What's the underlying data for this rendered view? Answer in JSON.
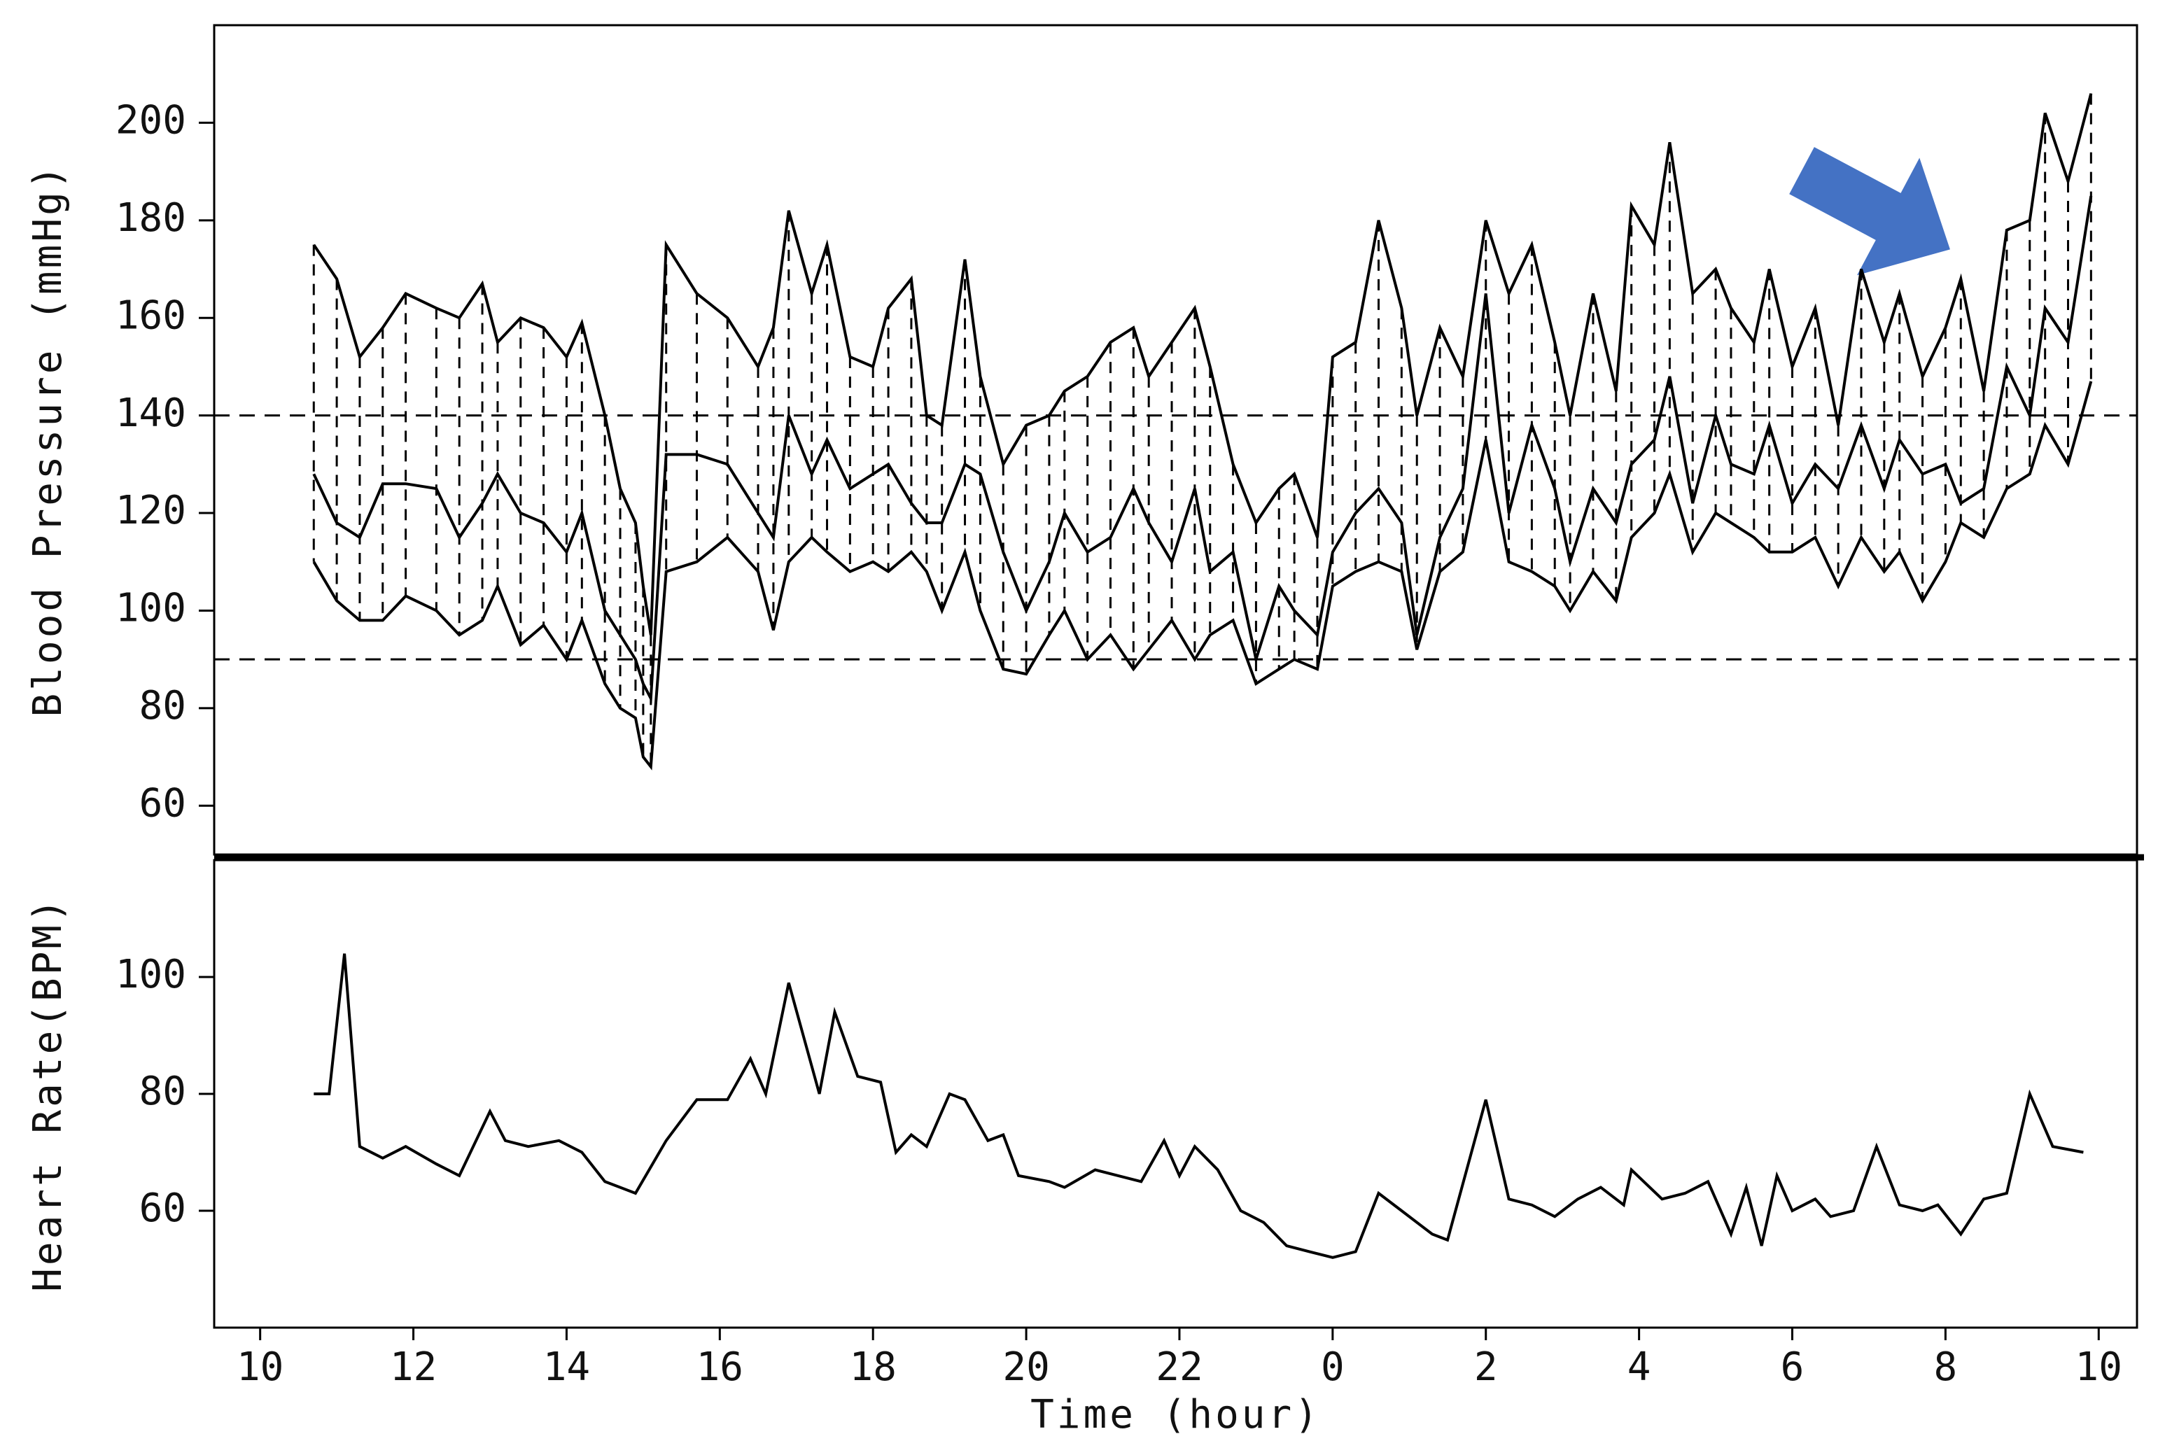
{
  "chart_data": [
    {
      "type": "line",
      "ylabel": "Blood Pressure (mmHg)",
      "x": [
        10.7,
        11.0,
        11.3,
        11.6,
        11.9,
        12.3,
        12.6,
        12.9,
        13.1,
        13.4,
        13.7,
        14.0,
        14.2,
        14.5,
        14.7,
        14.9,
        15.0,
        15.1,
        15.3,
        15.7,
        16.1,
        16.5,
        16.7,
        16.9,
        17.2,
        17.4,
        17.7,
        18.0,
        18.2,
        18.5,
        18.7,
        18.9,
        19.2,
        19.4,
        19.7,
        20.0,
        20.3,
        20.5,
        20.8,
        21.1,
        21.4,
        21.6,
        21.9,
        22.2,
        22.4,
        22.7,
        23.0,
        23.3,
        23.5,
        23.8,
        24.0,
        24.3,
        24.6,
        24.9,
        25.1,
        25.4,
        25.7,
        26.0,
        26.3,
        26.6,
        26.9,
        27.1,
        27.4,
        27.7,
        27.9,
        28.2,
        28.4,
        28.7,
        29.0,
        29.2,
        29.5,
        29.7,
        30.0,
        30.3,
        30.6,
        30.9,
        31.2,
        31.4,
        31.7,
        32.0,
        32.2,
        32.5,
        32.8,
        33.1,
        33.3,
        33.6,
        33.9
      ],
      "series": [
        {
          "color": "#000000",
          "values": [
            175,
            168,
            152,
            158,
            165,
            162,
            160,
            167,
            155,
            160,
            158,
            152,
            159,
            140,
            125,
            118,
            105,
            95,
            175,
            165,
            160,
            150,
            158,
            182,
            165,
            175,
            152,
            150,
            162,
            168,
            140,
            138,
            172,
            148,
            130,
            138,
            140,
            145,
            148,
            155,
            158,
            148,
            155,
            162,
            150,
            130,
            118,
            125,
            128,
            115,
            152,
            155,
            180,
            162,
            140,
            158,
            148,
            180,
            165,
            175,
            155,
            140,
            165,
            145,
            183,
            175,
            196,
            165,
            170,
            162,
            155,
            170,
            150,
            162,
            138,
            170,
            155,
            165,
            148,
            158,
            168,
            145,
            178,
            180,
            202,
            188,
            206
          ]
        },
        {
          "color": "#000000",
          "values": [
            128,
            118,
            115,
            126,
            126,
            125,
            115,
            122,
            128,
            120,
            118,
            112,
            120,
            100,
            95,
            90,
            85,
            82,
            132,
            132,
            130,
            120,
            115,
            140,
            128,
            135,
            125,
            128,
            130,
            122,
            118,
            118,
            130,
            128,
            112,
            100,
            110,
            120,
            112,
            115,
            125,
            118,
            110,
            125,
            108,
            112,
            90,
            105,
            100,
            95,
            112,
            120,
            125,
            118,
            95,
            115,
            125,
            165,
            120,
            138,
            125,
            110,
            125,
            118,
            130,
            135,
            148,
            122,
            140,
            130,
            128,
            138,
            122,
            130,
            125,
            138,
            125,
            135,
            128,
            130,
            122,
            125,
            150,
            140,
            162,
            155,
            185
          ]
        },
        {
          "color": "#000000",
          "values": [
            110,
            102,
            98,
            98,
            103,
            100,
            95,
            98,
            105,
            93,
            97,
            90,
            98,
            85,
            80,
            78,
            70,
            68,
            108,
            110,
            115,
            108,
            96,
            110,
            115,
            112,
            108,
            110,
            108,
            112,
            108,
            100,
            112,
            100,
            88,
            87,
            95,
            100,
            90,
            95,
            88,
            92,
            98,
            90,
            95,
            98,
            85,
            88,
            90,
            88,
            105,
            108,
            110,
            108,
            92,
            108,
            112,
            135,
            110,
            108,
            105,
            100,
            108,
            102,
            115,
            120,
            128,
            112,
            120,
            118,
            115,
            112,
            112,
            115,
            105,
            115,
            108,
            112,
            102,
            110,
            118,
            115,
            125,
            128,
            138,
            130,
            147
          ]
        }
      ],
      "range_hatch": true,
      "reference_lines": [
        140,
        90
      ],
      "xlim": [
        9.4,
        34.5
      ],
      "ylim": [
        50,
        220
      ],
      "yticks": [
        60,
        80,
        100,
        120,
        140,
        160,
        180,
        200
      ]
    },
    {
      "type": "line",
      "ylabel": "Heart Rate(BPM)",
      "xlabel": "Time (hour)",
      "x": [
        10.7,
        10.9,
        11.1,
        11.3,
        11.6,
        11.9,
        12.3,
        12.6,
        13.0,
        13.2,
        13.5,
        13.9,
        14.2,
        14.5,
        14.9,
        15.3,
        15.7,
        16.1,
        16.4,
        16.6,
        16.9,
        17.3,
        17.5,
        17.8,
        18.1,
        18.3,
        18.5,
        18.7,
        19.0,
        19.2,
        19.5,
        19.7,
        19.9,
        20.3,
        20.5,
        20.9,
        21.2,
        21.5,
        21.8,
        22.0,
        22.2,
        22.5,
        22.8,
        23.1,
        23.4,
        23.7,
        24.0,
        24.3,
        24.6,
        24.9,
        25.3,
        25.5,
        26.0,
        26.3,
        26.6,
        26.9,
        27.2,
        27.5,
        27.8,
        27.9,
        28.3,
        28.6,
        28.9,
        29.2,
        29.4,
        29.6,
        29.8,
        30.0,
        30.3,
        30.5,
        30.8,
        31.1,
        31.4,
        31.7,
        31.9,
        32.2,
        32.5,
        32.8,
        33.1,
        33.4,
        33.8
      ],
      "series": [
        {
          "color": "#000000",
          "values": [
            80,
            80,
            104,
            71,
            69,
            71,
            68,
            66,
            77,
            72,
            71,
            72,
            70,
            65,
            63,
            72,
            79,
            79,
            86,
            80,
            99,
            80,
            94,
            83,
            82,
            70,
            73,
            71,
            80,
            79,
            72,
            73,
            66,
            65,
            64,
            67,
            66,
            65,
            72,
            66,
            71,
            67,
            60,
            58,
            54,
            53,
            52,
            53,
            63,
            60,
            56,
            55,
            79,
            62,
            61,
            59,
            62,
            64,
            61,
            67,
            62,
            63,
            65,
            56,
            64,
            54,
            66,
            60,
            62,
            59,
            60,
            71,
            61,
            60,
            61,
            56,
            62,
            63,
            80,
            71,
            70
          ]
        }
      ],
      "xlim": [
        9.4,
        34.5
      ],
      "ylim": [
        40,
        120
      ],
      "yticks": [
        60,
        80,
        100
      ],
      "xticks": [
        10,
        12,
        14,
        16,
        18,
        20,
        22,
        {
          "value": 24,
          "label": "0"
        },
        {
          "value": 26,
          "label": "2"
        },
        {
          "value": 28,
          "label": "4"
        },
        {
          "value": 30,
          "label": "6"
        },
        {
          "value": 32,
          "label": "8"
        },
        {
          "value": 34,
          "label": "10"
        }
      ]
    }
  ]
}
